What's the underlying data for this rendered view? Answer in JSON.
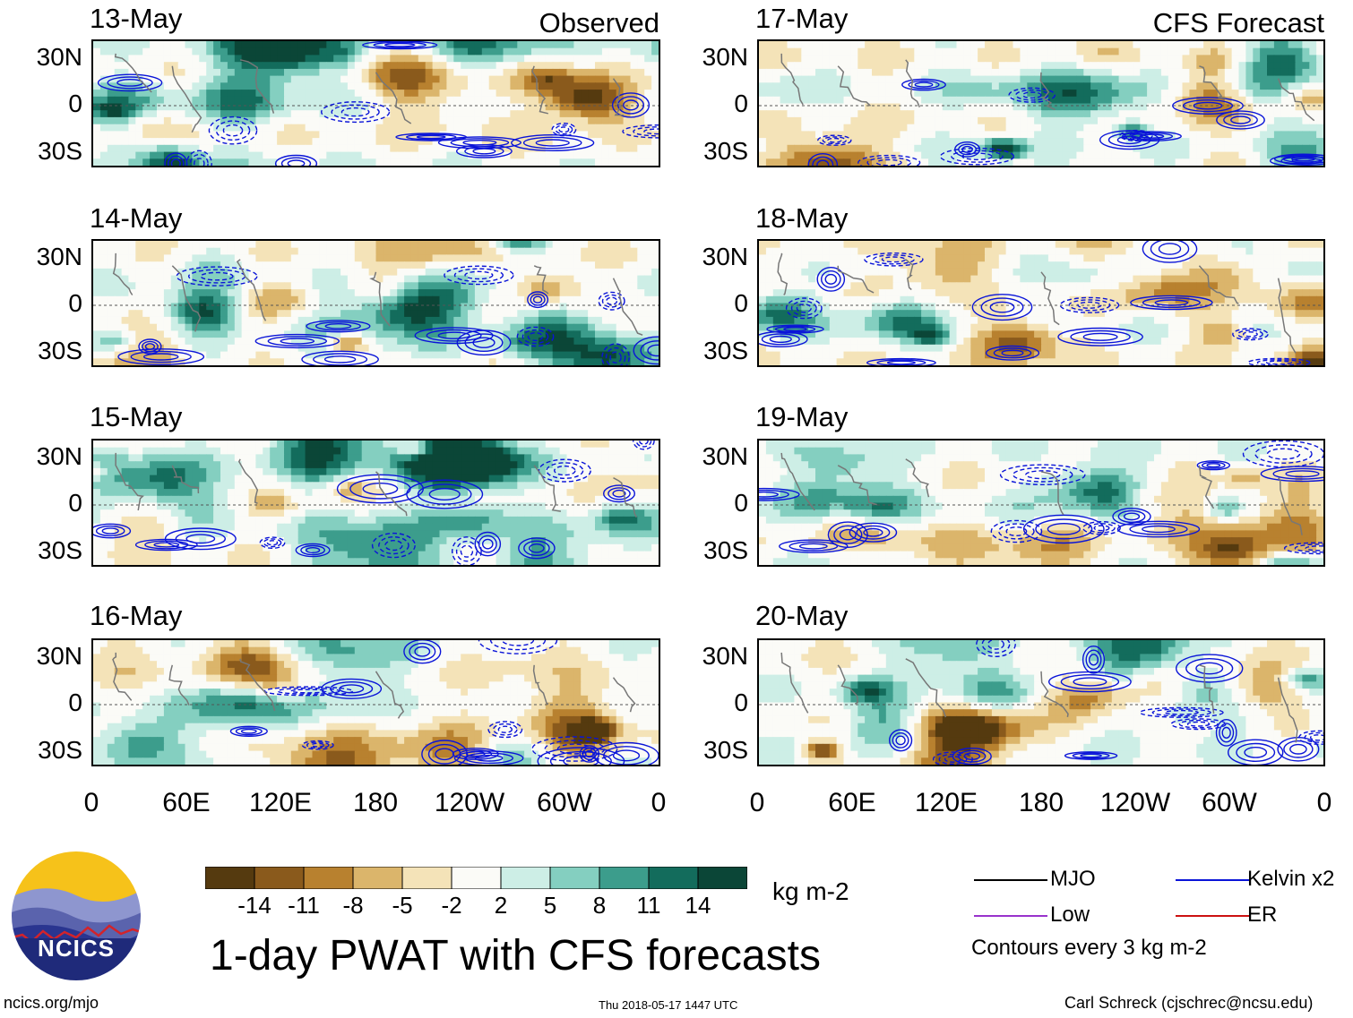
{
  "chart_data": {
    "type": "heatmap",
    "title": "1-day PWAT with CFS forecasts",
    "column_headers": [
      "Observed",
      "CFS Forecast"
    ],
    "panels": [
      {
        "date": "13-May",
        "column": "Observed"
      },
      {
        "date": "14-May",
        "column": "Observed"
      },
      {
        "date": "15-May",
        "column": "Observed"
      },
      {
        "date": "16-May",
        "column": "Observed"
      },
      {
        "date": "17-May",
        "column": "CFS Forecast"
      },
      {
        "date": "18-May",
        "column": "CFS Forecast"
      },
      {
        "date": "19-May",
        "column": "CFS Forecast"
      },
      {
        "date": "20-May",
        "column": "CFS Forecast"
      }
    ],
    "y_ticks": [
      "30N",
      "0",
      "30S"
    ],
    "x_ticks": [
      "0",
      "60E",
      "120E",
      "180",
      "120W",
      "60W",
      "0"
    ],
    "colorbar": {
      "unit": "kg m-2",
      "levels": [
        -14,
        -11,
        -8,
        -5,
        -2,
        2,
        5,
        8,
        11,
        14
      ],
      "level_labels": [
        "-14",
        "-11",
        "-8",
        "-5",
        "-2",
        "2",
        "5",
        "8",
        "11",
        "14"
      ],
      "colors": [
        "#553a0f",
        "#8a5a1c",
        "#b8812f",
        "#dbb56b",
        "#f4e3b8",
        "#fbfbf7",
        "#cdeee6",
        "#84cfc0",
        "#3c9d8c",
        "#136c5c",
        "#0b4637"
      ]
    },
    "legend": [
      {
        "label": "MJO",
        "color": "#000000"
      },
      {
        "label": "Kelvin x2",
        "color": "#0a14d8"
      },
      {
        "label": "Low",
        "color": "#9933cc"
      },
      {
        "label": "ER",
        "color": "#cc1111"
      }
    ],
    "contour_note": "Contours every 3 kg m-2"
  },
  "logo": {
    "text": "NCICS"
  },
  "footer": {
    "url": "ncics.org/mjo",
    "timestamp": "Thu 2018-05-17 1447 UTC",
    "credit": "Carl Schreck (cjschrec@ncsu.edu)"
  }
}
